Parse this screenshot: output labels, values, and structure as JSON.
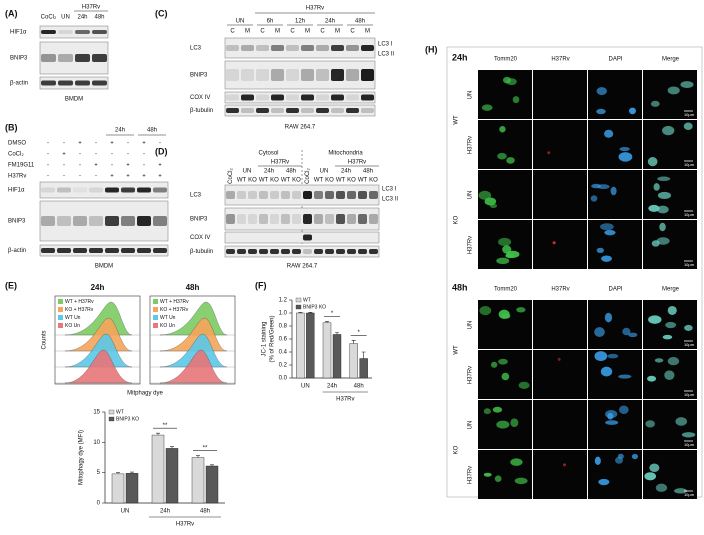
{
  "panel_a": {
    "label": "(A)",
    "group": "H37Rv",
    "columns": [
      "CoCl₂",
      "UN",
      "24h",
      "48h"
    ],
    "rows": [
      "HIF1α",
      "BNIP3",
      "β-actin"
    ],
    "cell": "BMDM"
  },
  "panel_b": {
    "label": "(B)",
    "times": [
      "24h",
      "48h"
    ],
    "treatments": [
      "DMSO",
      "CoCl₂",
      "FM19G11",
      "H37Rv"
    ],
    "signs": [
      [
        "-",
        "-",
        "+",
        "-",
        "+",
        "-",
        "+",
        "-"
      ],
      [
        "-",
        "+",
        "-",
        "-",
        "-",
        "-",
        "-",
        "-"
      ],
      [
        "-",
        "-",
        "-",
        "+",
        "-",
        "+",
        "-",
        "+"
      ],
      [
        "-",
        "-",
        "-",
        "-",
        "+",
        "+",
        "+",
        "+"
      ]
    ],
    "rows": [
      "HIF1α",
      "BNIP3",
      "β-actin"
    ],
    "cell": "BMDM"
  },
  "panel_c": {
    "label": "(C)",
    "group": "H37Rv",
    "times": [
      "UN",
      "6h",
      "12h",
      "24h",
      "48h"
    ],
    "fractions": [
      "C",
      "M"
    ],
    "rows": [
      "LC3",
      "BNIP3",
      "COX IV",
      "β-tubulin"
    ],
    "bands": [
      "LC3 I",
      "LC3 II"
    ],
    "cell": "RAW 264.7"
  },
  "panel_d": {
    "label": "(D)",
    "compartments": [
      "Cytosol",
      "Mitochondria"
    ],
    "group": "H37Rv",
    "control": "CoCl₂",
    "times": [
      "UN",
      "24h",
      "48h"
    ],
    "genotypes": [
      "WT",
      "KO"
    ],
    "rows": [
      "LC3",
      "BNIP3",
      "COX IV",
      "β-tubulin"
    ],
    "bands": [
      "LC3 I",
      "LC3 II"
    ],
    "cell": "RAW 264.7"
  },
  "panel_e": {
    "label": "(E)",
    "titles": [
      "24h",
      "48h"
    ],
    "legend": [
      "WT + H37Rv",
      "KO + H37Rv",
      "WT Un",
      "KO Un"
    ],
    "colors": [
      "#7ccc63",
      "#f5a55a",
      "#5bc8e8",
      "#e8767a"
    ],
    "x_label": "Mitphagy dye",
    "y_label": "Counts"
  },
  "panel_f": {
    "label": "(F)"
  },
  "panel_h": {
    "label": "(H)",
    "times": [
      "24h",
      "48h"
    ],
    "channels": [
      "Tomm20",
      "H37Rv",
      "DAPI",
      "Merge"
    ],
    "channel_colors": [
      "#3fbf4a",
      "#e03030",
      "#3a9ee8",
      "#6cd0c0"
    ],
    "genotypes": [
      "WT",
      "KO"
    ],
    "conditions": [
      "UN",
      "H37Rv"
    ],
    "scale": "10µm"
  },
  "chart_data": [
    {
      "type": "bar",
      "y_label": [
        "Mitophagy dye (MFI)"
      ],
      "categories": [
        "UN",
        "24h",
        "48h"
      ],
      "group_label": "H37Rv",
      "series": [
        {
          "name": "WT",
          "color": "#d9d9d9",
          "values": [
            4.8,
            11.2,
            7.5
          ],
          "errors": [
            0.2,
            0.3,
            0.3
          ]
        },
        {
          "name": "BNIP3 KO",
          "color": "#595959",
          "values": [
            4.9,
            9.0,
            6.1
          ],
          "errors": [
            0.2,
            0.3,
            0.2
          ]
        }
      ],
      "ylim": [
        0,
        15
      ],
      "yticks": [
        0,
        5,
        10,
        15
      ],
      "annotations": [
        "**",
        "**"
      ]
    },
    {
      "type": "bar",
      "y_label": [
        "JC-1 staining",
        "(% of Red/Green)"
      ],
      "categories": [
        "UN",
        "24h",
        "48h"
      ],
      "group_label": "H37Rv",
      "series": [
        {
          "name": "WT",
          "color": "#d9d9d9",
          "values": [
            1.0,
            0.85,
            0.53
          ],
          "errors": [
            0.01,
            0.02,
            0.05
          ]
        },
        {
          "name": "BNIP3 KO",
          "color": "#595959",
          "values": [
            1.0,
            0.67,
            0.3
          ],
          "errors": [
            0.01,
            0.03,
            0.1
          ]
        }
      ],
      "ylim": [
        0,
        1.2
      ],
      "yticks": [
        {
          "value": 0,
          "label": "0.0"
        },
        {
          "value": 0.2,
          "label": "0.2"
        },
        {
          "value": 0.4,
          "label": "0.4"
        },
        {
          "value": 0.6,
          "label": "0.6"
        },
        {
          "value": 0.8,
          "label": "0.8"
        },
        {
          "value": 1,
          "label": "1.0"
        },
        {
          "value": 1.2,
          "label": "1.2"
        }
      ],
      "annotations": [
        "*",
        "*"
      ]
    }
  ]
}
